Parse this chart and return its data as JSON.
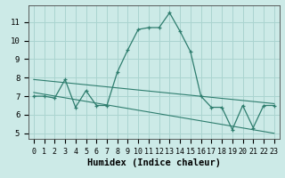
{
  "xlabel": "Humidex (Indice chaleur)",
  "x_values": [
    0,
    1,
    2,
    3,
    4,
    5,
    6,
    7,
    8,
    9,
    10,
    11,
    12,
    13,
    14,
    15,
    16,
    17,
    18,
    19,
    20,
    21,
    22,
    23
  ],
  "main_y": [
    7.0,
    7.0,
    6.9,
    7.9,
    6.4,
    7.3,
    6.5,
    6.5,
    8.3,
    9.5,
    10.6,
    10.7,
    10.7,
    11.5,
    10.5,
    9.4,
    7.0,
    6.4,
    6.4,
    5.2,
    6.5,
    5.3,
    6.5,
    6.5
  ],
  "trend1_x": [
    0,
    23
  ],
  "trend1_y": [
    7.9,
    6.6
  ],
  "trend2_x": [
    0,
    23
  ],
  "trend2_y": [
    7.2,
    5.0
  ],
  "yticks": [
    5,
    6,
    7,
    8,
    9,
    10,
    11
  ],
  "ylim": [
    4.7,
    11.9
  ],
  "xlim": [
    -0.5,
    23.5
  ],
  "line_color": "#2e7d6e",
  "bg_color": "#cceae7",
  "grid_color": "#aad4d0",
  "tick_fontsize": 6.5,
  "label_fontsize": 7.5
}
